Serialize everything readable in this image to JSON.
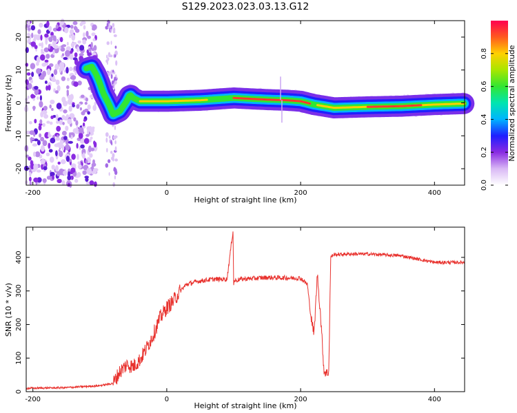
{
  "title": "S129.2023.023.03.13.G12",
  "chart_data": [
    {
      "type": "heatmap",
      "xlabel": "Height of straight line (km)",
      "ylabel": "Frequency (Hz)",
      "xlim": [
        -210,
        445
      ],
      "ylim": [
        -25,
        25
      ],
      "x_ticks": [
        -200,
        0,
        200,
        400
      ],
      "y_ticks": [
        -20,
        -10,
        0,
        10,
        20
      ],
      "colorbar": {
        "label": "Normalized spectral amplitude",
        "ticks": [
          0.0,
          0.2,
          0.4,
          0.6,
          0.8
        ],
        "range": [
          0,
          1
        ],
        "colormap": [
          "#ffffff",
          "#d9b8f5",
          "#8a2be2",
          "#1e1eff",
          "#00b4ff",
          "#00e5b0",
          "#32e632",
          "#a8e600",
          "#ffd000",
          "#ff5a1e",
          "#ff0050"
        ]
      },
      "line_center_frequency": {
        "x": [
          -120,
          -112,
          -105,
          -100,
          -95,
          -90,
          -85,
          -80,
          -75,
          -70,
          -65,
          -60,
          -55,
          -50,
          -40,
          -20,
          0,
          50,
          100,
          150,
          180,
          200,
          220,
          250,
          300,
          350,
          400,
          445
        ],
        "y": [
          10.5,
          11.0,
          8.5,
          6.0,
          3.0,
          1.0,
          -1.0,
          -3.5,
          -3.0,
          -2.5,
          -1.0,
          0.5,
          2.5,
          1.5,
          0.5,
          0.5,
          0.5,
          0.8,
          1.5,
          1.0,
          0.8,
          0.5,
          -0.5,
          -1.5,
          -1.2,
          -1.0,
          -0.5,
          -0.2
        ]
      },
      "noise_region_x": [
        -210,
        -105
      ],
      "noise_strip_x": [
        -90,
        -75
      ]
    },
    {
      "type": "line",
      "xlabel": "Height of straight line (km)",
      "ylabel": "SNR (10 * v/v)",
      "xlim": [
        -210,
        445
      ],
      "ylim": [
        0,
        490
      ],
      "x_ticks": [
        -200,
        0,
        200,
        400
      ],
      "y_ticks": [
        0,
        100,
        200,
        300,
        400
      ],
      "color": "#e8312d",
      "series": [
        {
          "x": [
            -210,
            -150,
            -100,
            -80,
            -70,
            -60,
            -50,
            -40,
            -30,
            -20,
            -10,
            0,
            10,
            20,
            30,
            50,
            70,
            90,
            99,
            100,
            101,
            110,
            150,
            200,
            210,
            215,
            220,
            225,
            230,
            235,
            240,
            242,
            245,
            247,
            250,
            270,
            300,
            350,
            400,
            445
          ],
          "y": [
            10,
            12,
            18,
            25,
            60,
            80,
            75,
            95,
            130,
            170,
            220,
            250,
            270,
            300,
            320,
            330,
            335,
            335,
            480,
            320,
            330,
            335,
            340,
            338,
            320,
            230,
            170,
            350,
            220,
            60,
            55,
            60,
            400,
            405,
            408,
            410,
            410,
            405,
            385,
            385
          ]
        }
      ]
    }
  ]
}
